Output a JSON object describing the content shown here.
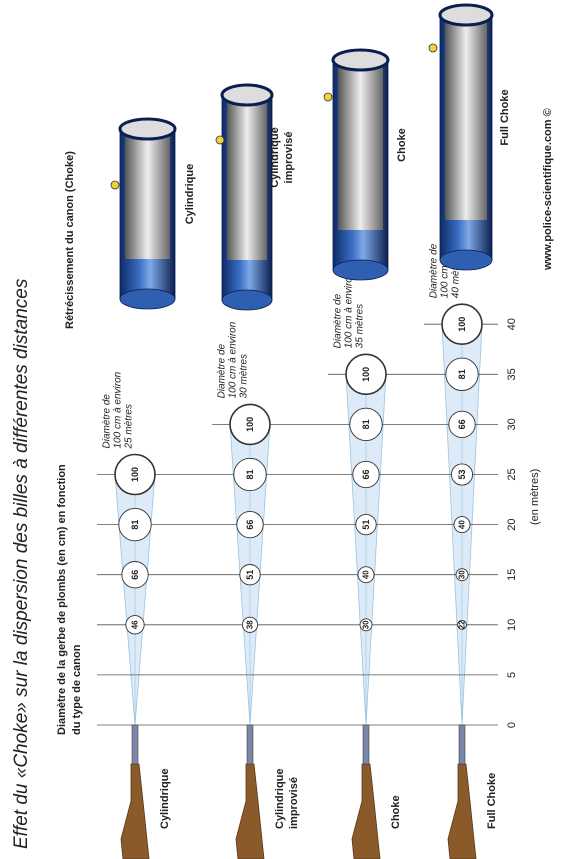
{
  "title": "Effet du «Choke» sur la dispersion des billes à différentes distances",
  "subtitle": [
    "Diamètre de la gerbe de plombs (en cm) en fonction",
    "du type de canon"
  ],
  "choke_heading": "Rétrécissement du canon (Choke)",
  "unit_label": "(en mètres)",
  "credit": "www.police-scientifique.com ©",
  "distances": [
    0,
    5,
    10,
    15,
    20,
    25,
    30,
    35,
    40
  ],
  "rows": [
    {
      "label_lines": [
        "Cylindrique"
      ],
      "barrel_lines": [
        "Cylindrique"
      ],
      "annotation": [
        "Diamètre de",
        "100 cm à environ",
        "25 mètres"
      ],
      "diameters": [
        {
          "distance": 10,
          "value": 46
        },
        {
          "distance": 15,
          "value": 66
        },
        {
          "distance": 20,
          "value": 81
        },
        {
          "distance": 25,
          "value": 100
        }
      ]
    },
    {
      "label_lines": [
        "Cylindrique",
        "improvisé"
      ],
      "barrel_lines": [
        "Cylindrique",
        "improvisé"
      ],
      "annotation": [
        "Diamètre de",
        "100 cm à environ",
        "30 mètres"
      ],
      "diameters": [
        {
          "distance": 10,
          "value": 38
        },
        {
          "distance": 15,
          "value": 51
        },
        {
          "distance": 20,
          "value": 66
        },
        {
          "distance": 25,
          "value": 81
        },
        {
          "distance": 30,
          "value": 100
        }
      ]
    },
    {
      "label_lines": [
        "Choke"
      ],
      "barrel_lines": [
        "Choke"
      ],
      "annotation": [
        "Diamètre de",
        "100 cm à environ",
        "35 mètres"
      ],
      "diameters": [
        {
          "distance": 10,
          "value": 30
        },
        {
          "distance": 15,
          "value": 40
        },
        {
          "distance": 20,
          "value": 51
        },
        {
          "distance": 25,
          "value": 66
        },
        {
          "distance": 30,
          "value": 81
        },
        {
          "distance": 35,
          "value": 100
        }
      ]
    },
    {
      "label_lines": [
        "Full Choke"
      ],
      "barrel_lines": [
        "Full Choke"
      ],
      "annotation": [
        "Diamètre de",
        "100 cm à environ",
        "40 mètres"
      ],
      "diameters": [
        {
          "distance": 10,
          "value": 22
        },
        {
          "distance": 15,
          "value": 30
        },
        {
          "distance": 20,
          "value": 40
        },
        {
          "distance": 25,
          "value": 53
        },
        {
          "distance": 30,
          "value": 66
        },
        {
          "distance": 35,
          "value": 81
        },
        {
          "distance": 40,
          "value": 100
        }
      ]
    }
  ]
}
